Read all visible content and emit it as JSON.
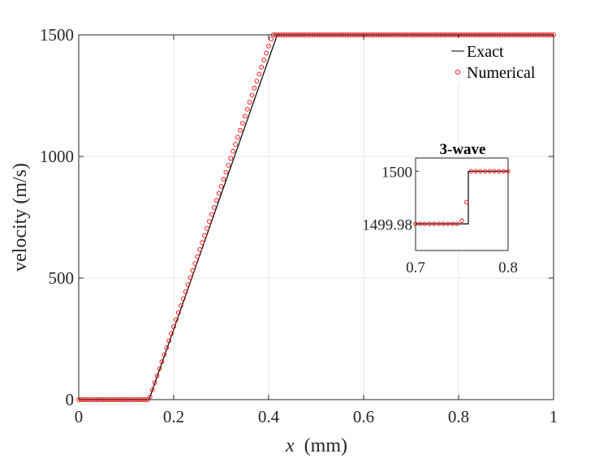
{
  "colors": {
    "exact": "#000000",
    "numerical": "#ff0000",
    "grid": "#e6e6e6",
    "axis": "#262626"
  },
  "chart_data": [
    {
      "type": "line",
      "title": "",
      "xlabel_var": "x",
      "xlabel_unit": "(mm)",
      "ylabel": "velocity (m/s)",
      "xlim": [
        0,
        1
      ],
      "ylim": [
        0,
        1500
      ],
      "xticks": [
        0,
        0.2,
        0.4,
        0.6,
        0.8,
        1
      ],
      "xtick_labels": [
        "0",
        "0.2",
        "0.4",
        "0.6",
        "0.8",
        "1"
      ],
      "yticks": [
        0,
        500,
        1000,
        1500
      ],
      "ytick_labels": [
        "0",
        "500",
        "1000",
        "1500"
      ],
      "grid": true,
      "legend_position": "top-right",
      "series": [
        {
          "name": "Exact",
          "style": "solid-line",
          "color": "#000000",
          "x": [
            0,
            0.148,
            0.418,
            1
          ],
          "y": [
            0,
            0,
            1500,
            1500
          ]
        },
        {
          "name": "Numerical",
          "style": "open-circle-markers",
          "color": "#ff0000",
          "x_start": 0,
          "x_end": 1,
          "n_points": 201,
          "description_profile": "ramp from 0 at x=0.148 to 1500 at x=0.408, constant elsewhere",
          "ramp": {
            "x_start": 0.148,
            "x_end": 0.408,
            "y_low": 0,
            "y_high": 1500
          }
        }
      ]
    },
    {
      "type": "line",
      "title": "3-wave",
      "xlim": [
        0.7,
        0.8
      ],
      "ylim": [
        1499.97,
        1500.005
      ],
      "xticks": [
        0.7,
        0.8
      ],
      "xtick_labels": [
        "0.7",
        "0.8"
      ],
      "yticks": [
        1499.98,
        1500
      ],
      "ytick_labels": [
        "1499.98",
        "1500"
      ],
      "grid": false,
      "series": [
        {
          "name": "Exact",
          "color": "#000000",
          "x": [
            0.7,
            0.757,
            0.757,
            0.8
          ],
          "y": [
            1499.9801,
            1499.9801,
            1500,
            1500
          ]
        },
        {
          "name": "Numerical",
          "color": "#ff0000",
          "x": [
            0.7,
            0.705,
            0.71,
            0.715,
            0.72,
            0.725,
            0.73,
            0.735,
            0.74,
            0.745,
            0.75,
            0.755,
            0.76,
            0.765,
            0.77,
            0.775,
            0.78,
            0.785,
            0.79,
            0.795,
            0.8
          ],
          "y": [
            1499.9801,
            1499.9801,
            1499.9801,
            1499.9801,
            1499.9801,
            1499.9801,
            1499.9801,
            1499.9801,
            1499.9801,
            1499.9801,
            1499.9813,
            1499.9883,
            1500,
            1500,
            1500,
            1500,
            1500,
            1500,
            1500,
            1500,
            1500
          ]
        }
      ]
    }
  ],
  "legend": {
    "exact_label": "Exact",
    "numerical_label": "Numerical"
  }
}
